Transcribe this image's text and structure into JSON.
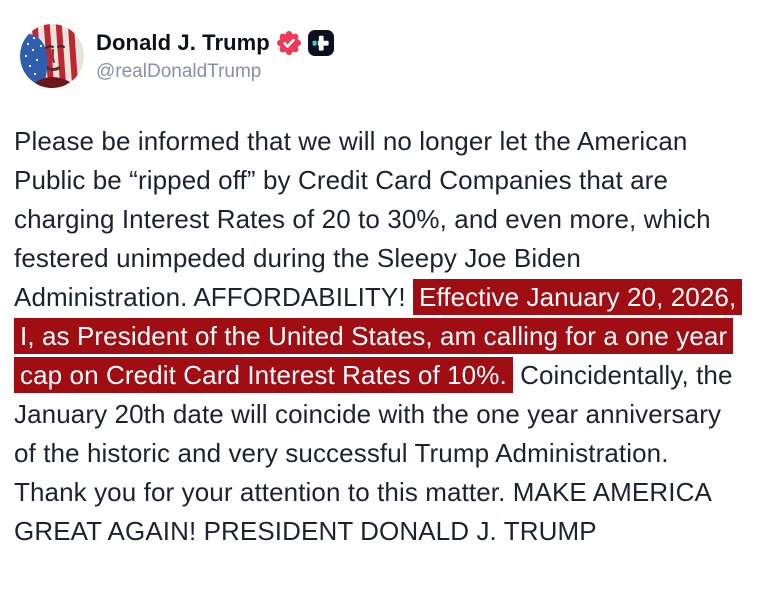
{
  "theme": {
    "background": "#ffffff",
    "body_text": "#1d2233",
    "name_color": "#0d1020",
    "handle_color": "#8790a5",
    "highlight_bg": "#a00e13",
    "highlight_text": "#ffffff",
    "verified_color": "#ee3a55",
    "plus_badge_bg": "#0c1022",
    "plus_badge_accent": "#38d6c4"
  },
  "header": {
    "display_name": "Donald J. Trump",
    "handle": "@realDonaldTrump",
    "badges": [
      {
        "name": "verified-badge",
        "meaning": "verified account seal with checkmark"
      },
      {
        "name": "truth-plus-badge",
        "meaning": "plus sign in dark rounded square"
      }
    ]
  },
  "post": {
    "segments": [
      {
        "text": "Please be informed that we will no longer let the American Public be “ripped off” by Credit Card Companies that are charging Interest Rates of 20 to 30%, and even more, which festered unimpeded during the Sleepy Joe Biden Administration. AFFORDABILITY! ",
        "highlight": false
      },
      {
        "text": "Effective January 20, 2026, I, as President of the United States, am calling for a one year cap on Credit Card Interest Rates of 10%.",
        "highlight": true
      },
      {
        "text": " Coincidentally, the January 20th date will coincide with the one year anniversary of the historic and very successful Trump Administration. Thank you for your attention to this matter. MAKE AMERICA GREAT AGAIN! PRESIDENT DONALD J. TRUMP",
        "highlight": false
      }
    ]
  }
}
